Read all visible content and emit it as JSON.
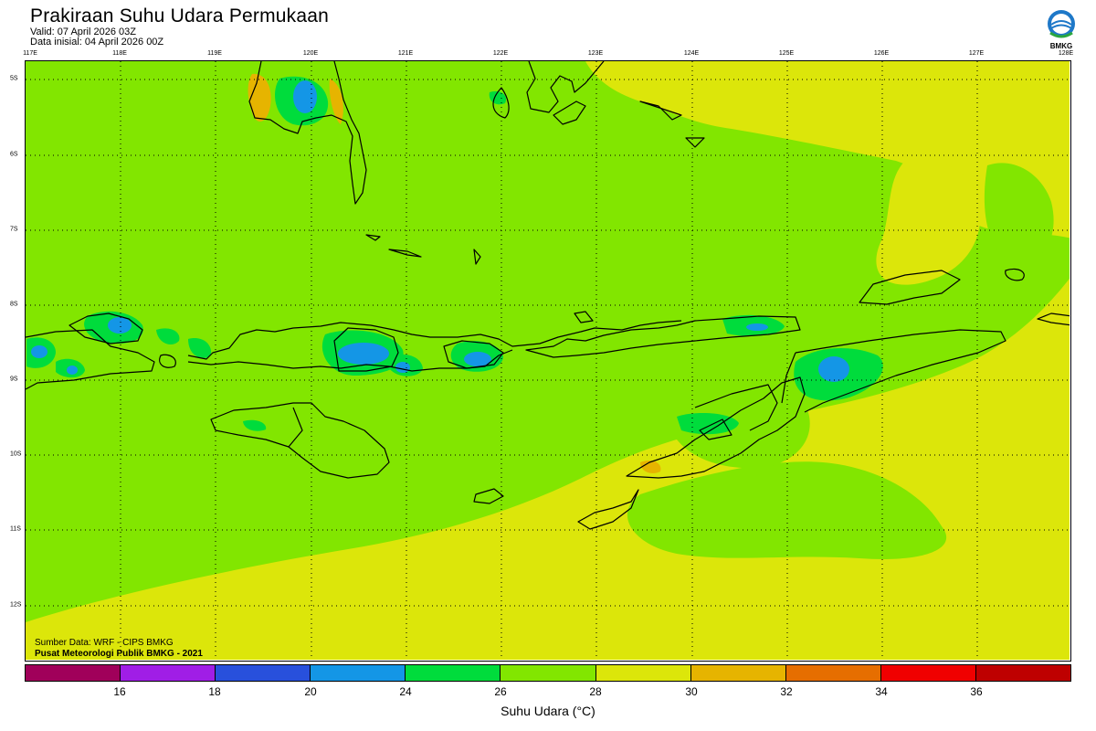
{
  "header": {
    "title": "Prakiraan Suhu Udara Permukaan",
    "valid": "Valid: 07 April 2026 03Z",
    "init": "Data inisial: 04 April 2026 00Z"
  },
  "logo": {
    "icon": "bmkg-logo-icon",
    "text": "BMKG"
  },
  "map": {
    "lon_labels": [
      "117E",
      "118E",
      "119E",
      "120E",
      "121E",
      "122E",
      "123E",
      "124E",
      "125E",
      "126E",
      "127E",
      "128E"
    ],
    "lat_labels": [
      "5S",
      "6S",
      "7S",
      "8S",
      "9S",
      "10S",
      "11S",
      "12S"
    ],
    "grid": "dotted",
    "region": "Nusa Tenggara & Timor"
  },
  "credits": {
    "source": "Sumber Data: WRF - CIPS BMKG",
    "org": "Pusat Meteorologi Publik BMKG - 2021"
  },
  "colorbar": {
    "colors": [
      "#a0005a",
      "#a01ee6",
      "#2850dc",
      "#1496e6",
      "#00dc3c",
      "#82e600",
      "#dce60a",
      "#e6b400",
      "#e66e00",
      "#f00000",
      "#be0000"
    ],
    "ticks": [
      "16",
      "18",
      "20",
      "24",
      "26",
      "28",
      "30",
      "32",
      "34",
      "36"
    ],
    "label": "Suhu Udara (°C)"
  }
}
